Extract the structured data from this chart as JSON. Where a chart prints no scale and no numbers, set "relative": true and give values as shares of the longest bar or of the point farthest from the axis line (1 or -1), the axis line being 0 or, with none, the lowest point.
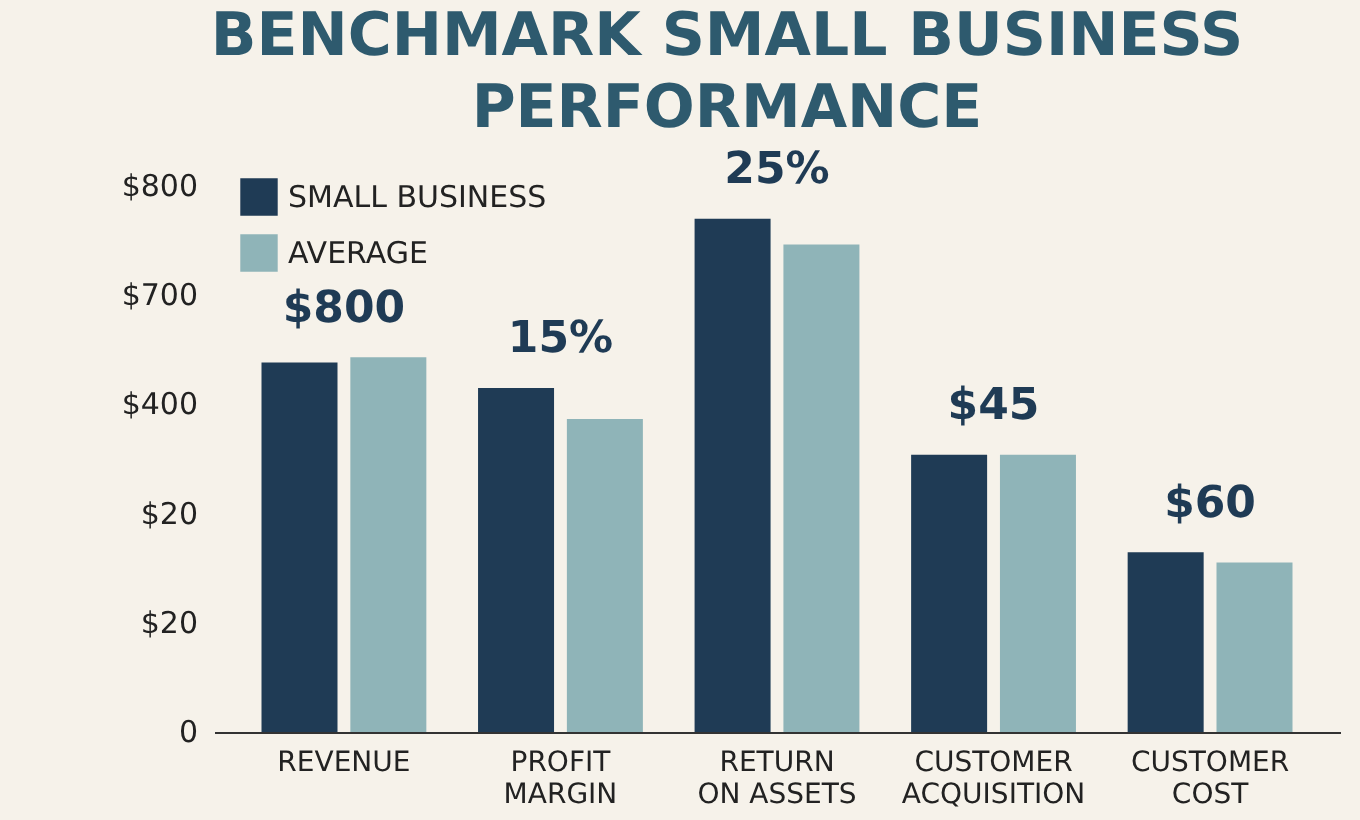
{
  "chart_data": {
    "type": "bar",
    "title": "BENCHMARK SMALL BUSINESS\nPERFORMANCE",
    "relative": true,
    "categories": [
      "REVENUE",
      "PROFIT\nMARGIN",
      "RETURN\nON ASSETS",
      "CUSTOMER\nACQUISITION",
      "CUSTOMER\nCOST"
    ],
    "series": [
      {
        "name": "SMALL BUSINESS",
        "color": "#1f3b55",
        "values": [
          0.72,
          0.67,
          1,
          0.54,
          0.35
        ]
      },
      {
        "name": "AVERAGE",
        "color": "#8fb4b8",
        "values": [
          0.73,
          0.61,
          0.95,
          0.54,
          0.33
        ]
      }
    ],
    "annotations": [
      "$800",
      "$700",
      "$400",
      "$20",
      "$20",
      "0",
      "$800",
      "15%",
      "25%",
      "$45",
      "$60"
    ],
    "grid": false,
    "legend": "top left"
  }
}
